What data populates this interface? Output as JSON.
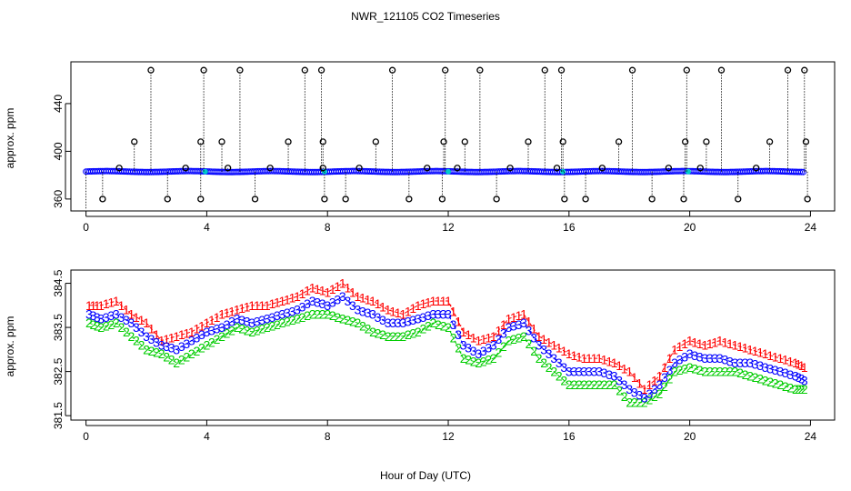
{
  "chart_data": [
    {
      "type": "scatter",
      "title": "NWR_121105  CO2 Timeseries",
      "xlabel": "",
      "ylabel": "approx. ppm",
      "xlim": [
        -0.5,
        24.8
      ],
      "ylim": [
        350,
        475
      ],
      "x_ticks": [
        0,
        4,
        8,
        12,
        16,
        20,
        24
      ],
      "x_tick_labels": [
        "0",
        "4",
        "8",
        "12",
        "16",
        "20",
        "24"
      ],
      "y_ticks": [
        360,
        400,
        440
      ],
      "y_tick_labels": [
        "360",
        "400",
        "440"
      ],
      "baseline": 383,
      "high_spikes_x": [
        2.15,
        3.9,
        5.1,
        7.25,
        7.8,
        10.15,
        11.9,
        13.05,
        15.2,
        15.75,
        18.1,
        19.9,
        21.05,
        23.25,
        23.8
      ],
      "high_spike_value": 468,
      "mid_spikes_x": [
        1.6,
        3.8,
        4.5,
        6.7,
        7.85,
        9.6,
        11.85,
        12.55,
        14.65,
        15.8,
        17.65,
        19.85,
        20.55,
        22.65,
        23.85
      ],
      "mid_spike_value": 408,
      "low_spikes_x": [
        0.55,
        2.7,
        3.8,
        5.6,
        7.9,
        8.6,
        10.7,
        11.8,
        13.6,
        15.85,
        16.55,
        18.75,
        19.8,
        21.6,
        23.9
      ],
      "low_spike_value": 360,
      "near_points_x": [
        1.1,
        3.3,
        4.7,
        6.1,
        7.85,
        9.05,
        11.3,
        12.3,
        14.05,
        15.6,
        17.1,
        19.3,
        20.35,
        22.2
      ],
      "near_point_value": 386,
      "point_colors": {
        "outlier": "#000000",
        "series": "#0000ff",
        "highlight": "#00cccc"
      }
    },
    {
      "type": "line",
      "xlabel": "Hour of Day (UTC)",
      "ylabel": "approx. ppm",
      "xlim": [
        -0.5,
        24.8
      ],
      "ylim": [
        381.4,
        384.8
      ],
      "x_ticks": [
        0,
        4,
        8,
        12,
        16,
        20,
        24
      ],
      "x_tick_labels": [
        "0",
        "4",
        "8",
        "12",
        "16",
        "20",
        "24"
      ],
      "y_ticks": [
        381.5,
        382.5,
        383.5,
        384.5
      ],
      "y_tick_labels": [
        "381.5",
        "382.5",
        "383.5",
        "384.5"
      ],
      "x": [
        0.1,
        0.5,
        1.0,
        1.5,
        2.0,
        2.5,
        3.0,
        3.5,
        4.0,
        4.5,
        5.0,
        5.5,
        6.0,
        6.5,
        7.0,
        7.5,
        8.0,
        8.5,
        9.0,
        9.5,
        10.0,
        10.5,
        11.0,
        11.5,
        12.0,
        12.5,
        13.0,
        13.5,
        14.0,
        14.5,
        15.0,
        15.5,
        16.0,
        16.5,
        17.0,
        17.5,
        18.0,
        18.5,
        19.0,
        19.5,
        20.0,
        20.5,
        21.0,
        21.5,
        22.0,
        22.5,
        23.0,
        23.5,
        23.8
      ],
      "series": [
        {
          "name": "1",
          "color": "#ff0000",
          "values": [
            384.0,
            384.0,
            384.1,
            383.8,
            383.6,
            383.2,
            383.3,
            383.4,
            383.6,
            383.8,
            383.9,
            384.0,
            384.0,
            384.1,
            384.2,
            384.4,
            384.3,
            384.5,
            384.2,
            384.1,
            383.9,
            383.8,
            384.0,
            384.1,
            384.1,
            383.4,
            383.2,
            383.3,
            383.7,
            383.8,
            383.3,
            383.1,
            382.9,
            382.8,
            382.8,
            382.7,
            382.5,
            382.1,
            382.4,
            383.0,
            383.2,
            383.1,
            383.2,
            383.1,
            383.0,
            382.9,
            382.8,
            382.7,
            382.6
          ]
        },
        {
          "name": "2",
          "color": "#00cc00",
          "values": [
            383.6,
            383.5,
            383.6,
            383.3,
            383.0,
            382.9,
            382.7,
            382.9,
            383.1,
            383.3,
            383.5,
            383.4,
            383.5,
            383.6,
            383.7,
            383.8,
            383.8,
            383.7,
            383.6,
            383.4,
            383.3,
            383.3,
            383.4,
            383.6,
            383.5,
            382.8,
            382.7,
            382.8,
            383.2,
            383.3,
            382.8,
            382.5,
            382.2,
            382.2,
            382.2,
            382.2,
            381.8,
            381.8,
            382.0,
            382.5,
            382.6,
            382.5,
            382.5,
            382.5,
            382.4,
            382.3,
            382.2,
            382.1,
            382.1
          ]
        },
        {
          "name": "3",
          "color": "#0000ff",
          "values": [
            383.8,
            383.7,
            383.8,
            383.6,
            383.3,
            383.1,
            383.0,
            383.2,
            383.4,
            383.5,
            383.7,
            383.6,
            383.7,
            383.8,
            383.9,
            384.1,
            384.0,
            384.2,
            383.9,
            383.8,
            383.6,
            383.6,
            383.7,
            383.8,
            383.8,
            383.1,
            382.9,
            383.1,
            383.5,
            383.6,
            383.1,
            382.8,
            382.5,
            382.5,
            382.5,
            382.4,
            382.1,
            381.9,
            382.2,
            382.7,
            382.9,
            382.8,
            382.8,
            382.7,
            382.7,
            382.6,
            382.5,
            382.4,
            382.3
          ]
        }
      ]
    }
  ]
}
